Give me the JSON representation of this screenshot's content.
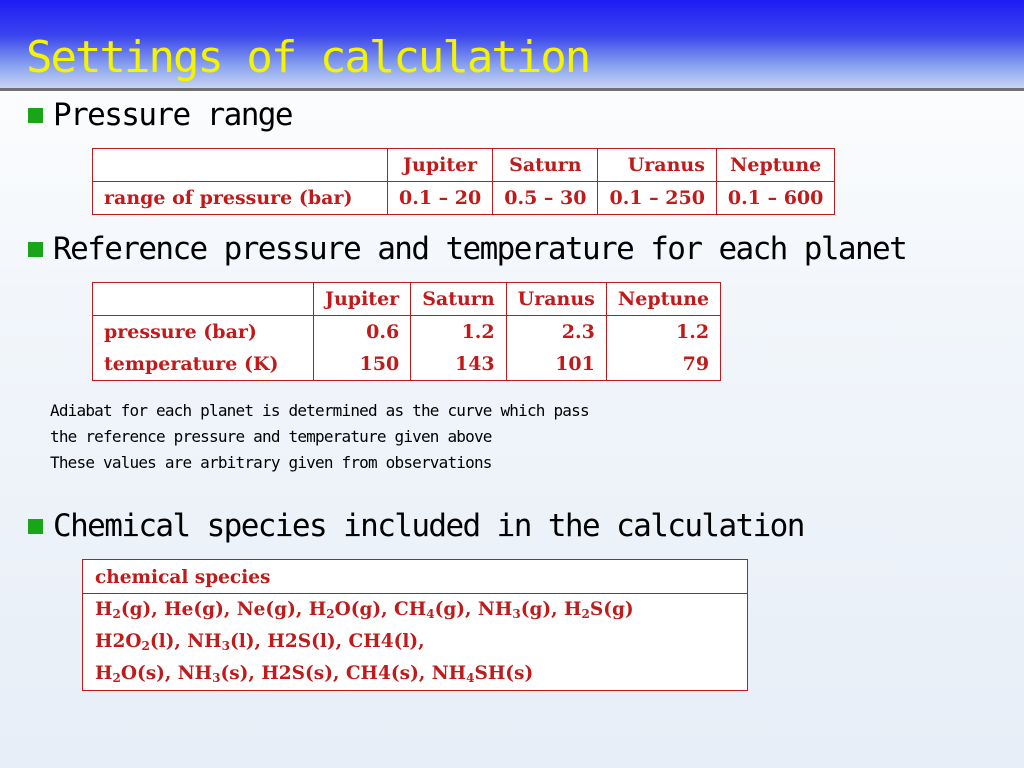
{
  "slide": {
    "title": "Settings of calculation"
  },
  "section1": {
    "heading": "Pressure range",
    "table": {
      "headers": [
        "",
        "Jupiter",
        "Saturn",
        "Uranus",
        "Neptune"
      ],
      "rows": [
        {
          "label": "range of pressure (bar)",
          "values": [
            "0.1 – 20",
            "0.5 – 30",
            "0.1 – 250",
            "0.1 – 600"
          ]
        }
      ]
    }
  },
  "section2": {
    "heading": "Reference pressure and temperature for each planet",
    "table": {
      "headers": [
        "",
        "Jupiter",
        "Saturn",
        "Uranus",
        "Neptune"
      ],
      "rows": [
        {
          "label": "pressure (bar)",
          "values": [
            "0.6",
            "1.2",
            "2.3",
            "1.2"
          ]
        },
        {
          "label": "temperature (K)",
          "values": [
            "150",
            "143",
            "101",
            "79"
          ]
        }
      ]
    },
    "notes": [
      "Adiabat for each planet is determined as the curve which pass",
      "the reference pressure and temperature given above",
      "These values are arbitrary given from observations"
    ]
  },
  "section3": {
    "heading": "Chemical species included in the calculation",
    "box_header": "chemical species",
    "lines": [
      [
        {
          "t": "H"
        },
        {
          "s": "2"
        },
        {
          "t": "(g), He(g), Ne(g), H"
        },
        {
          "s": "2"
        },
        {
          "t": "O(g), CH"
        },
        {
          "s": "4"
        },
        {
          "t": "(g), NH"
        },
        {
          "s": "3"
        },
        {
          "t": "(g), H"
        },
        {
          "s": "2"
        },
        {
          "t": "S(g)"
        }
      ],
      [
        {
          "t": "H2O"
        },
        {
          "s": "2"
        },
        {
          "t": "(l), NH"
        },
        {
          "s": "3"
        },
        {
          "t": "(l), H2S(l), CH4(l),"
        }
      ],
      [
        {
          "t": "H"
        },
        {
          "s": "2"
        },
        {
          "t": "O(s), NH"
        },
        {
          "s": "3"
        },
        {
          "t": "(s), H2S(s), CH4(s), NH"
        },
        {
          "s": "4"
        },
        {
          "t": "SH(s)"
        }
      ]
    ]
  },
  "colors": {
    "title": "#f4f400",
    "bullet": "#18a518",
    "table_text": "#c11a1a"
  }
}
